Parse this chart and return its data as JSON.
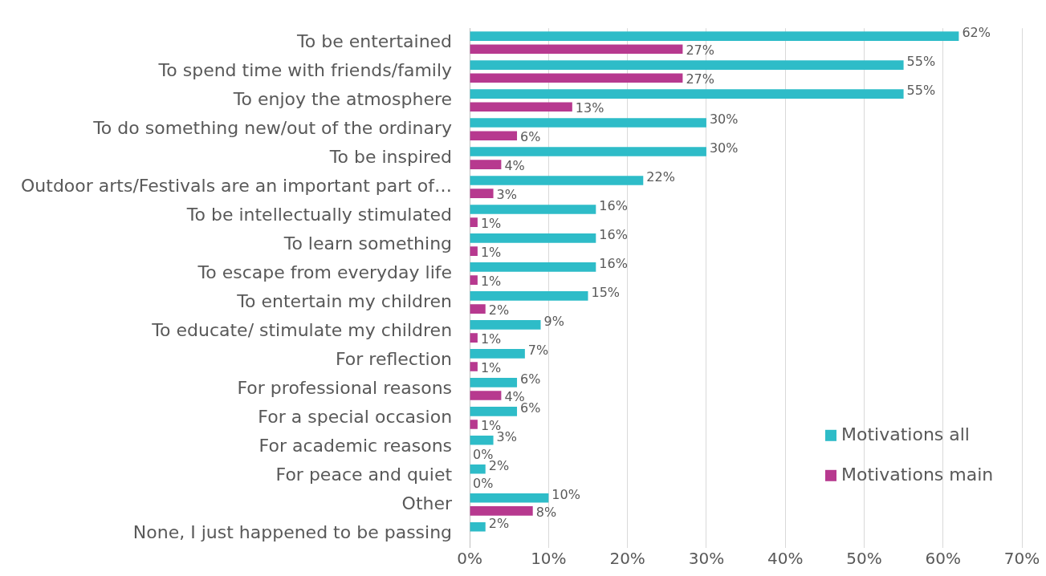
{
  "chart_data": {
    "type": "bar",
    "orientation": "horizontal",
    "categories": [
      "To be entertained",
      "To spend time with friends/family",
      "To enjoy the atmosphere",
      "To do something new/out of the ordinary",
      "To be inspired",
      "Outdoor arts/Festivals are an important part of…",
      "To be intellectually stimulated",
      "To learn something",
      "To escape from everyday life",
      "To entertain my children",
      "To educate/ stimulate my children",
      "For reflection",
      "For professional reasons",
      "For a special occasion",
      "For academic reasons",
      "For peace and quiet",
      "Other",
      "None, I just happened to be passing"
    ],
    "series": [
      {
        "name": "Motivations all",
        "color": "#2ebcc8",
        "values": [
          62,
          55,
          55,
          30,
          30,
          22,
          16,
          16,
          16,
          15,
          9,
          7,
          6,
          6,
          3,
          2,
          10,
          2
        ],
        "value_labels": [
          "62%",
          "55%",
          "55%",
          "30%",
          "30%",
          "22%",
          "16%",
          "16%",
          "16%",
          "15%",
          "9%",
          "7%",
          "6%",
          "6%",
          "3%",
          "2%",
          "10%",
          "2%"
        ]
      },
      {
        "name": "Motivations main",
        "color": "#b7398f",
        "values": [
          27,
          27,
          13,
          6,
          4,
          3,
          1,
          1,
          1,
          2,
          1,
          1,
          4,
          1,
          0,
          0,
          8,
          null
        ],
        "value_labels": [
          "27%",
          "27%",
          "13%",
          "6%",
          "4%",
          "3%",
          "1%",
          "1%",
          "1%",
          "2%",
          "1%",
          "1%",
          "4%",
          "1%",
          "0%",
          "0%",
          "8%",
          null
        ]
      }
    ],
    "xlim": [
      0,
      70
    ],
    "xticks": [
      {
        "value": 0,
        "label": "0%"
      },
      {
        "value": 10,
        "label": "10%"
      },
      {
        "value": 20,
        "label": "20%"
      },
      {
        "value": 30,
        "label": "30%"
      },
      {
        "value": 40,
        "label": "40%"
      },
      {
        "value": 50,
        "label": "50%"
      },
      {
        "value": 60,
        "label": "60%"
      },
      {
        "value": 70,
        "label": "70%"
      }
    ],
    "grid": "x",
    "legend": "bottom right"
  }
}
